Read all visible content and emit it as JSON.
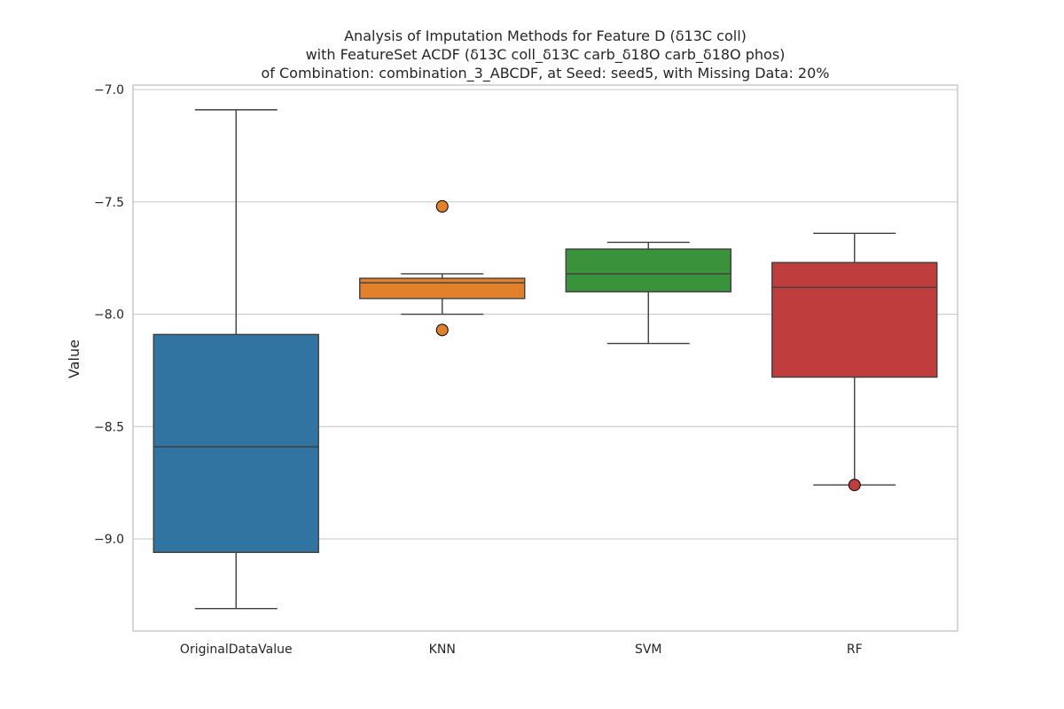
{
  "chart_data": {
    "type": "box",
    "title_lines": [
      "Analysis of Imputation Methods for Feature D (δ13C coll)",
      "with FeatureSet ACDF (δ13C coll_δ13C carb_δ18O carb_δ18O phos)",
      "of Combination: combination_3_ABCDF, at Seed: seed5, with Missing Data: 20%"
    ],
    "xlabel": "",
    "ylabel": "Value",
    "ylim": [
      -9.41,
      -6.98
    ],
    "yticks": [
      -7.0,
      -7.5,
      -8.0,
      -8.5,
      -9.0
    ],
    "ytick_labels": [
      "−7.0",
      "−7.5",
      "−8.0",
      "−8.5",
      "−9.0"
    ],
    "grid": true,
    "categories": [
      "OriginalDataValue",
      "KNN",
      "SVM",
      "RF"
    ],
    "series": [
      {
        "name": "OriginalDataValue",
        "color": "#3274a1",
        "whisker_low": -9.31,
        "q1": -9.06,
        "median": -8.59,
        "q3": -8.09,
        "whisker_high": -7.09,
        "outliers": []
      },
      {
        "name": "KNN",
        "color": "#e1812c",
        "whisker_low": -8.0,
        "q1": -7.93,
        "median": -7.86,
        "q3": -7.84,
        "whisker_high": -7.82,
        "outliers": [
          -7.52,
          -8.07
        ]
      },
      {
        "name": "SVM",
        "color": "#3a923a",
        "whisker_low": -8.13,
        "q1": -7.9,
        "median": -7.82,
        "q3": -7.71,
        "whisker_high": -7.68,
        "outliers": []
      },
      {
        "name": "RF",
        "color": "#c03d3e",
        "whisker_low": -8.76,
        "q1": -8.28,
        "median": -7.88,
        "q3": -7.77,
        "whisker_high": -7.64,
        "outliers": [
          -8.76
        ]
      }
    ]
  }
}
